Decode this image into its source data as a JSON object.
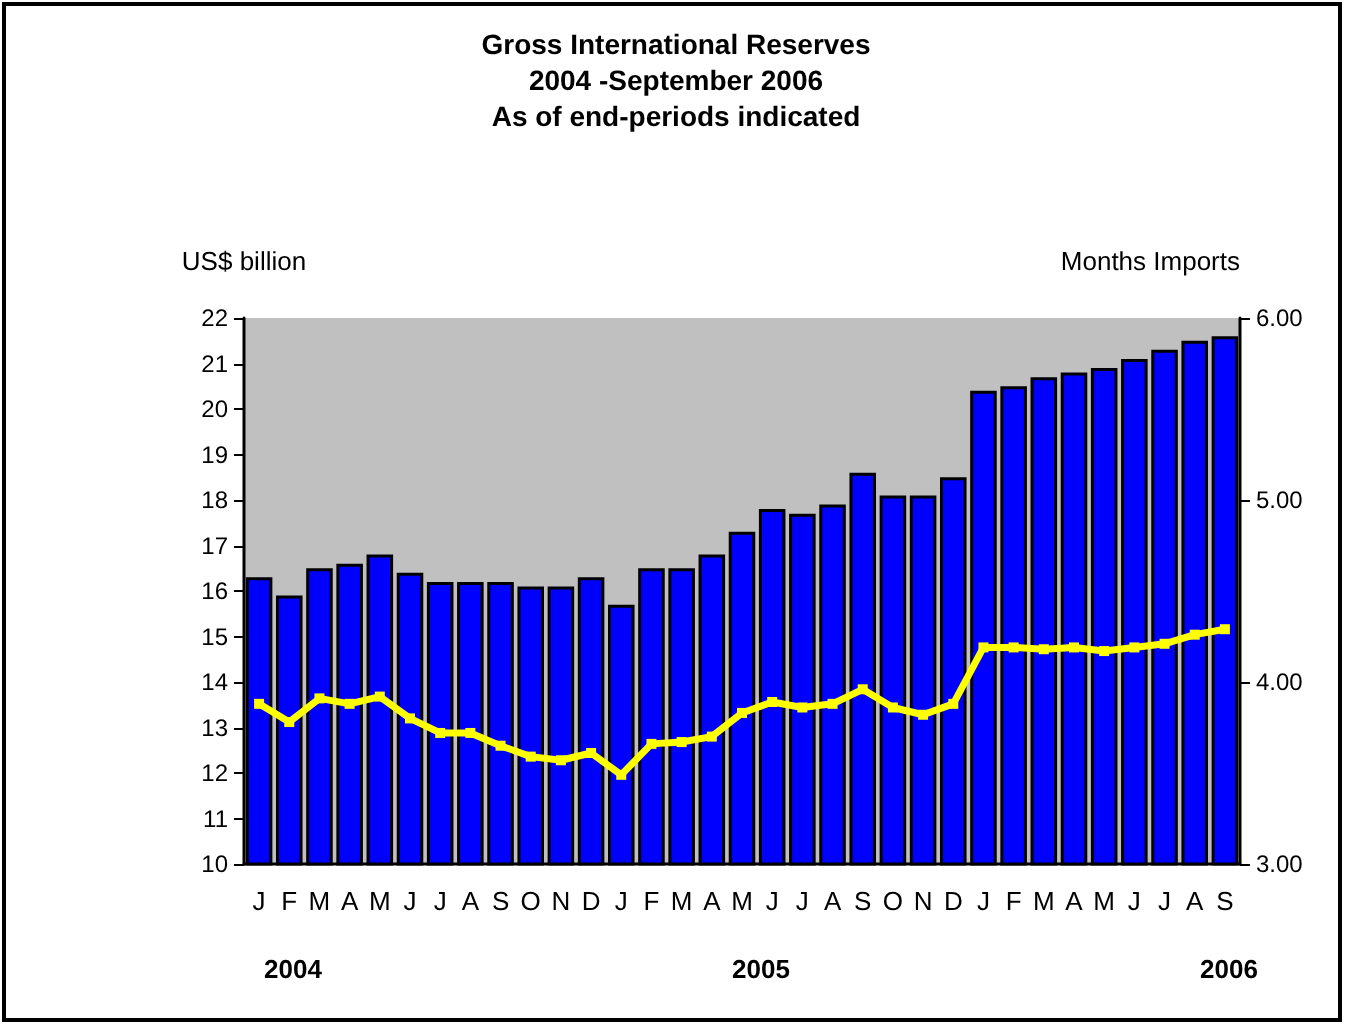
{
  "chart_data": {
    "type": "bar",
    "title": "Gross International Reserves\n2004 -September 2006\nAs of end-periods indicated",
    "ylabel": "US$ billion",
    "y2label": "Months Imports",
    "categories": [
      "J",
      "F",
      "M",
      "A",
      "M",
      "J",
      "J",
      "A",
      "S",
      "O",
      "N",
      "D",
      "J",
      "F",
      "M",
      "A",
      "M",
      "J",
      "J",
      "A",
      "S",
      "O",
      "N",
      "D",
      "J",
      "F",
      "M",
      "A",
      "M",
      "J",
      "J",
      "A",
      "S"
    ],
    "series": [
      {
        "color": "#0000ff",
        "values": [
          16.3,
          15.9,
          16.5,
          16.6,
          16.8,
          16.4,
          16.2,
          16.2,
          16.2,
          16.1,
          16.1,
          16.3,
          15.7,
          16.5,
          16.5,
          16.8,
          17.3,
          17.8,
          17.7,
          17.9,
          18.6,
          18.1,
          18.1,
          18.5,
          20.4,
          20.5,
          20.7,
          20.8,
          20.9,
          21.1,
          21.3,
          21.5,
          21.6
        ]
      },
      {
        "type": "line",
        "axis": "y2",
        "color": "#ffff00",
        "marker": "square",
        "values": [
          3.88,
          3.78,
          3.91,
          3.88,
          3.92,
          3.8,
          3.72,
          3.72,
          3.65,
          3.59,
          3.57,
          3.61,
          3.49,
          3.66,
          3.67,
          3.7,
          3.83,
          3.89,
          3.86,
          3.88,
          3.96,
          3.86,
          3.82,
          3.88,
          4.19,
          4.19,
          4.18,
          4.19,
          4.17,
          4.19,
          4.21,
          4.26,
          4.29
        ]
      }
    ],
    "ylim": [
      10,
      22
    ],
    "yticks": [
      10,
      11,
      12,
      13,
      14,
      15,
      16,
      17,
      18,
      19,
      20,
      21,
      22
    ],
    "y2lim": [
      3,
      6
    ],
    "y2ticks": [
      {
        "value": 3,
        "label": "3.00"
      },
      {
        "value": 4,
        "label": "4.00"
      },
      {
        "value": 5,
        "label": "5.00"
      },
      {
        "value": 6,
        "label": "6.00"
      }
    ],
    "annotations": [
      "2004",
      "2005",
      "2006"
    ],
    "grid": false
  }
}
